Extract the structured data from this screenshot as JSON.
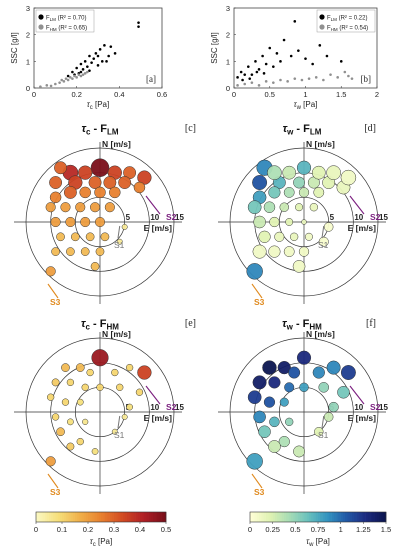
{
  "chart_data": [
    {
      "panel": "[a]",
      "type": "scatter",
      "xlabel": "τc [Pa]",
      "ylabel": "SSC [g/l]",
      "xlim": [
        0,
        0.6
      ],
      "ylim": [
        0,
        3
      ],
      "xticks": [
        0,
        0.2,
        0.4,
        0.6
      ],
      "yticks": [
        0,
        1,
        2,
        3
      ],
      "legend": [
        {
          "name": "FLM (R² = 0.70)",
          "color": "#000000"
        },
        {
          "name": "FHM (R² = 0.65)",
          "color": "#909090"
        }
      ],
      "series": [
        {
          "name": "FLM",
          "color": "#000000",
          "points": [
            [
              0.16,
              0.45
            ],
            [
              0.18,
              0.6
            ],
            [
              0.19,
              0.5
            ],
            [
              0.2,
              0.75
            ],
            [
              0.21,
              0.55
            ],
            [
              0.22,
              0.9
            ],
            [
              0.23,
              0.7
            ],
            [
              0.24,
              1.0
            ],
            [
              0.25,
              0.8
            ],
            [
              0.26,
              1.2
            ],
            [
              0.27,
              0.95
            ],
            [
              0.28,
              1.1
            ],
            [
              0.29,
              1.3
            ],
            [
              0.3,
              0.85
            ],
            [
              0.31,
              1.45
            ],
            [
              0.32,
              1.0
            ],
            [
              0.33,
              1.6
            ],
            [
              0.35,
              1.2
            ],
            [
              0.36,
              1.55
            ],
            [
              0.38,
              1.3
            ],
            [
              0.49,
              2.3
            ],
            [
              0.49,
              2.45
            ],
            [
              0.22,
              0.6
            ],
            [
              0.26,
              0.65
            ],
            [
              0.3,
              1.2
            ],
            [
              0.34,
              1.0
            ]
          ]
        },
        {
          "name": "FHM",
          "color": "#909090",
          "points": [
            [
              0.03,
              0.05
            ],
            [
              0.06,
              0.1
            ],
            [
              0.08,
              0.08
            ],
            [
              0.1,
              0.15
            ],
            [
              0.12,
              0.2
            ],
            [
              0.13,
              0.3
            ],
            [
              0.14,
              0.25
            ],
            [
              0.15,
              0.35
            ],
            [
              0.16,
              0.3
            ],
            [
              0.17,
              0.4
            ],
            [
              0.18,
              0.35
            ],
            [
              0.19,
              0.45
            ],
            [
              0.2,
              0.4
            ],
            [
              0.21,
              0.5
            ],
            [
              0.22,
              0.45
            ],
            [
              0.23,
              0.5
            ],
            [
              0.24,
              0.55
            ],
            [
              0.25,
              0.6
            ]
          ]
        }
      ]
    },
    {
      "panel": "[b]",
      "type": "scatter",
      "xlabel": "τw [Pa]",
      "ylabel": "SSC [g/l]",
      "xlim": [
        0,
        2
      ],
      "ylim": [
        0,
        3
      ],
      "xticks": [
        0,
        0.5,
        1,
        1.5,
        2
      ],
      "yticks": [
        0,
        1,
        2,
        3
      ],
      "legend": [
        {
          "name": "FLM (R² = 0.22)",
          "color": "#000000"
        },
        {
          "name": "FHM (R² = 0.54)",
          "color": "#909090"
        }
      ],
      "series": [
        {
          "name": "FLM",
          "color": "#000000",
          "points": [
            [
              0.05,
              0.4
            ],
            [
              0.1,
              0.6
            ],
            [
              0.15,
              0.5
            ],
            [
              0.2,
              0.8
            ],
            [
              0.25,
              0.5
            ],
            [
              0.3,
              1.0
            ],
            [
              0.35,
              0.7
            ],
            [
              0.4,
              1.2
            ],
            [
              0.45,
              0.9
            ],
            [
              0.5,
              1.5
            ],
            [
              0.55,
              0.8
            ],
            [
              0.6,
              1.3
            ],
            [
              0.65,
              1.0
            ],
            [
              0.7,
              1.8
            ],
            [
              0.8,
              1.2
            ],
            [
              0.85,
              2.5
            ],
            [
              0.9,
              1.4
            ],
            [
              1.0,
              1.1
            ],
            [
              1.1,
              0.9
            ],
            [
              1.2,
              1.6
            ],
            [
              1.3,
              1.2
            ],
            [
              1.4,
              2.6
            ],
            [
              1.5,
              1.0
            ],
            [
              0.12,
              0.3
            ],
            [
              0.22,
              0.35
            ],
            [
              0.32,
              0.6
            ],
            [
              0.42,
              0.55
            ]
          ]
        },
        {
          "name": "FHM",
          "color": "#909090",
          "points": [
            [
              0.05,
              0.1
            ],
            [
              0.15,
              0.15
            ],
            [
              0.25,
              0.2
            ],
            [
              0.35,
              0.1
            ],
            [
              0.45,
              0.25
            ],
            [
              0.55,
              0.2
            ],
            [
              0.65,
              0.3
            ],
            [
              0.75,
              0.25
            ],
            [
              0.85,
              0.35
            ],
            [
              0.95,
              0.3
            ],
            [
              1.05,
              0.35
            ],
            [
              1.15,
              0.4
            ],
            [
              1.25,
              0.3
            ],
            [
              1.35,
              0.5
            ],
            [
              1.45,
              0.4
            ],
            [
              1.55,
              0.6
            ],
            [
              1.6,
              0.45
            ],
            [
              1.65,
              0.35
            ]
          ]
        }
      ]
    },
    {
      "panel": "[c]",
      "type": "scatter",
      "title": "τc - FLM",
      "north_label": "N [m/s]",
      "east_label": "E [m/s]",
      "ring_labels": [
        "5",
        "10",
        "15"
      ],
      "annotations": [
        "S1",
        "S2",
        "S3"
      ],
      "colormap": "heat",
      "clim": [
        0,
        0.5
      ],
      "points": [
        [
          -8,
          11,
          0.3
        ],
        [
          -6,
          10,
          0.4
        ],
        [
          -3,
          10,
          0.35
        ],
        [
          0,
          11,
          0.5
        ],
        [
          3,
          10,
          0.35
        ],
        [
          6,
          10,
          0.3
        ],
        [
          9,
          9,
          0.35
        ],
        [
          -9,
          8,
          0.3
        ],
        [
          -5,
          8,
          0.35
        ],
        [
          -1,
          8,
          0.3
        ],
        [
          2,
          8,
          0.3
        ],
        [
          5,
          8,
          0.3
        ],
        [
          8,
          7,
          0.25
        ],
        [
          -9,
          5,
          0.25
        ],
        [
          -6,
          6,
          0.3
        ],
        [
          -3,
          6,
          0.25
        ],
        [
          0,
          6,
          0.25
        ],
        [
          3,
          6,
          0.25
        ],
        [
          -10,
          3,
          0.2
        ],
        [
          -7,
          3,
          0.2
        ],
        [
          -4,
          3,
          0.2
        ],
        [
          -1,
          3,
          0.2
        ],
        [
          2,
          3,
          0.2
        ],
        [
          -9,
          0,
          0.2
        ],
        [
          -6,
          0,
          0.2
        ],
        [
          -3,
          0,
          0.2
        ],
        [
          0,
          0,
          0.2
        ],
        [
          -8,
          -3,
          0.15
        ],
        [
          -5,
          -3,
          0.15
        ],
        [
          -2,
          -3,
          0.15
        ],
        [
          1,
          -3,
          0.15
        ],
        [
          -9,
          -6,
          0.15
        ],
        [
          -6,
          -6,
          0.15
        ],
        [
          -3,
          -6,
          0.15
        ],
        [
          0,
          -6,
          0.15
        ],
        [
          -1,
          -9,
          0.15
        ],
        [
          5,
          -1,
          0.05
        ],
        [
          4,
          -4,
          0.05
        ],
        [
          -10,
          -10,
          0.2
        ]
      ]
    },
    {
      "panel": "[d]",
      "type": "scatter",
      "title": "τw - FLM",
      "north_label": "N [m/s]",
      "east_label": "E [m/s]",
      "ring_labels": [
        "5",
        "10",
        "15"
      ],
      "annotations": [
        "S1",
        "S2",
        "S3"
      ],
      "colormap": "ylgnbu",
      "clim": [
        0,
        1.5
      ],
      "points": [
        [
          -8,
          11,
          0.9
        ],
        [
          -6,
          10,
          0.4
        ],
        [
          -3,
          10,
          0.3
        ],
        [
          0,
          11,
          0.7
        ],
        [
          3,
          10,
          0.2
        ],
        [
          6,
          10,
          0.15
        ],
        [
          9,
          9,
          0.1
        ],
        [
          -9,
          8,
          1.1
        ],
        [
          -5,
          8,
          0.7
        ],
        [
          -1,
          8,
          0.5
        ],
        [
          2,
          8,
          0.3
        ],
        [
          5,
          8,
          0.2
        ],
        [
          8,
          7,
          0.15
        ],
        [
          -9,
          5,
          0.8
        ],
        [
          -6,
          6,
          0.6
        ],
        [
          -3,
          6,
          0.4
        ],
        [
          0,
          6,
          0.3
        ],
        [
          3,
          6,
          0.2
        ],
        [
          -10,
          3,
          0.6
        ],
        [
          -7,
          3,
          0.4
        ],
        [
          -4,
          3,
          0.3
        ],
        [
          -1,
          3,
          0.2
        ],
        [
          2,
          3,
          0.15
        ],
        [
          -9,
          0,
          0.3
        ],
        [
          -6,
          0,
          0.2
        ],
        [
          -3,
          0,
          0.2
        ],
        [
          0,
          0,
          0.15
        ],
        [
          -8,
          -3,
          0.2
        ],
        [
          -5,
          -3,
          0.15
        ],
        [
          -2,
          -3,
          0.15
        ],
        [
          1,
          -3,
          0.1
        ],
        [
          -9,
          -6,
          0.1
        ],
        [
          -6,
          -6,
          0.1
        ],
        [
          -3,
          -6,
          0.1
        ],
        [
          0,
          -6,
          0.1
        ],
        [
          -1,
          -9,
          0.1
        ],
        [
          5,
          -1,
          0.05
        ],
        [
          4,
          -4,
          0.05
        ],
        [
          -10,
          -10,
          0.9
        ]
      ]
    },
    {
      "panel": "[e]",
      "type": "scatter",
      "title": "τc - FHM",
      "north_label": "N [m/s]",
      "east_label": "E [m/s]",
      "ring_labels": [
        "5",
        "10",
        "15"
      ],
      "annotations": [
        "S1",
        "S2",
        "S3"
      ],
      "colormap": "heat",
      "clim": [
        0,
        0.5
      ],
      "points": [
        [
          0,
          11,
          0.45
        ],
        [
          -7,
          9,
          0.15
        ],
        [
          -4,
          9,
          0.15
        ],
        [
          -2,
          8,
          0.1
        ],
        [
          3,
          8,
          0.1
        ],
        [
          6,
          9,
          0.1
        ],
        [
          9,
          8,
          0.35
        ],
        [
          -9,
          6,
          0.12
        ],
        [
          -6,
          6,
          0.1
        ],
        [
          -3,
          5,
          0.1
        ],
        [
          0,
          5,
          0.1
        ],
        [
          4,
          5,
          0.1
        ],
        [
          8,
          4,
          0.1
        ],
        [
          -10,
          3,
          0.1
        ],
        [
          -7,
          2,
          0.1
        ],
        [
          -4,
          2,
          0.08
        ],
        [
          6,
          1,
          0.08
        ],
        [
          -9,
          -1,
          0.1
        ],
        [
          -6,
          -2,
          0.08
        ],
        [
          -3,
          -2,
          0.06
        ],
        [
          5,
          -1,
          0.05
        ],
        [
          3,
          -4,
          0.05
        ],
        [
          -4,
          -6,
          0.1
        ],
        [
          -6,
          -7,
          0.12
        ],
        [
          -1,
          -8,
          0.08
        ],
        [
          -8,
          -4,
          0.15
        ],
        [
          -10,
          -10,
          0.2
        ]
      ]
    },
    {
      "panel": "[f]",
      "type": "scatter",
      "title": "τw - FHM",
      "north_label": "N [m/s]",
      "east_label": "E [m/s]",
      "ring_labels": [
        "5",
        "10",
        "15"
      ],
      "annotations": [
        "S1",
        "S2",
        "S3"
      ],
      "colormap": "ylgnbu",
      "clim": [
        0,
        1.5
      ],
      "points": [
        [
          0,
          11,
          1.3
        ],
        [
          -7,
          9,
          1.5
        ],
        [
          -4,
          9,
          1.4
        ],
        [
          -2,
          8,
          1.1
        ],
        [
          3,
          8,
          0.9
        ],
        [
          6,
          9,
          0.9
        ],
        [
          9,
          8,
          1.2
        ],
        [
          -9,
          6,
          1.4
        ],
        [
          -6,
          6,
          1.3
        ],
        [
          -3,
          5,
          1.0
        ],
        [
          0,
          5,
          0.8
        ],
        [
          4,
          5,
          0.5
        ],
        [
          8,
          4,
          0.6
        ],
        [
          -10,
          3,
          1.2
        ],
        [
          -7,
          2,
          1.1
        ],
        [
          -4,
          2,
          0.8
        ],
        [
          6,
          1,
          0.5
        ],
        [
          -9,
          -1,
          0.9
        ],
        [
          -6,
          -2,
          0.7
        ],
        [
          -3,
          -2,
          0.5
        ],
        [
          5,
          -1,
          0.3
        ],
        [
          3,
          -4,
          0.2
        ],
        [
          -4,
          -6,
          0.4
        ],
        [
          -6,
          -7,
          0.3
        ],
        [
          -1,
          -8,
          0.3
        ],
        [
          -8,
          -4,
          0.6
        ],
        [
          -10,
          -10,
          0.8
        ]
      ]
    },
    {
      "type": "colorbar",
      "label": "τc [Pa]",
      "colormap": "heat",
      "clim": [
        0,
        0.5
      ],
      "ticks": [
        "0",
        "0.1",
        "0.2",
        "0.3",
        "0.4",
        "0.5"
      ]
    },
    {
      "type": "colorbar",
      "label": "τw [Pa]",
      "colormap": "ylgnbu",
      "clim": [
        0,
        1.5
      ],
      "ticks": [
        "0",
        "0.25",
        "0.5",
        "0.75",
        "1",
        "1.25",
        "1.5"
      ]
    }
  ]
}
